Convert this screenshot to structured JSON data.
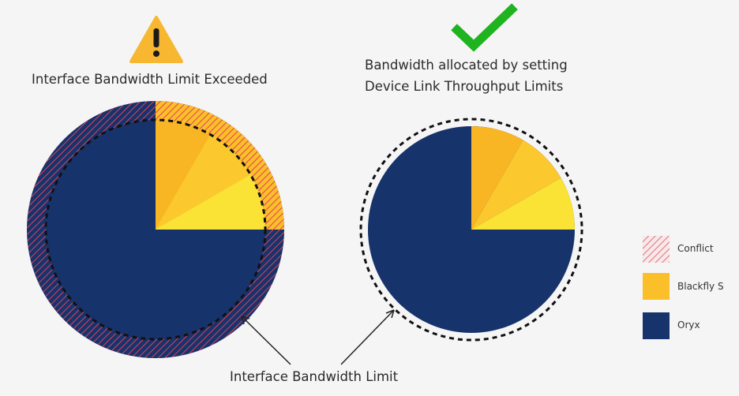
{
  "left_panel": {
    "title": "Interface Bandwidth Limit Exceeded",
    "icon": "warning-icon",
    "status_color": "#f7b731"
  },
  "right_panel": {
    "title_line1": "Bandwidth allocated by setting",
    "title_line2": "Device Link Throughput Limits",
    "icon": "checkmark-icon",
    "status_color": "#1fb31f"
  },
  "bottom_label": "Interface Bandwidth Limit",
  "legend": [
    {
      "label": "Conflict",
      "pattern": "hatched",
      "color": "#e05060"
    },
    {
      "label": "Blackfly S",
      "color": "#fbbf2a"
    },
    {
      "label": "Oryx",
      "color": "#17336b"
    }
  ],
  "colors": {
    "oryx": "#17336b",
    "blackfly_shades": [
      "#f9b624",
      "#fbc92e",
      "#fbe336"
    ],
    "conflict_stripe": "#e0405a",
    "limit_ring": "#111111"
  }
}
